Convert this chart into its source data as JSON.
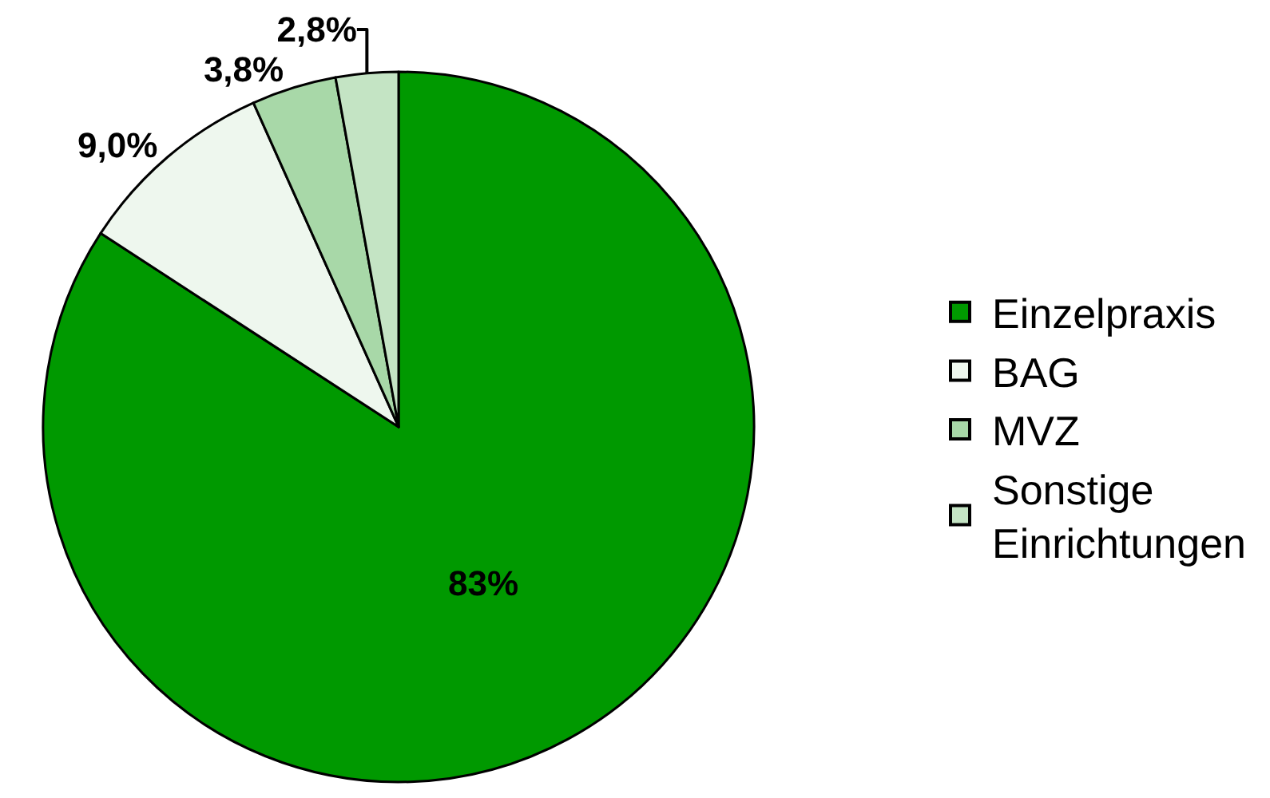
{
  "chart_data": {
    "type": "pie",
    "categories": [
      "Einzelpraxis",
      "BAG",
      "MVZ",
      "Sonstige Einrichtungen"
    ],
    "values": [
      83,
      9.0,
      3.8,
      2.8
    ],
    "colors": [
      "#009900",
      "#eef7ee",
      "#a8d8a8",
      "#c4e4c4"
    ],
    "value_labels": [
      "83%",
      "9,0%",
      "3,8%",
      "2,8%"
    ],
    "legend": "right"
  }
}
